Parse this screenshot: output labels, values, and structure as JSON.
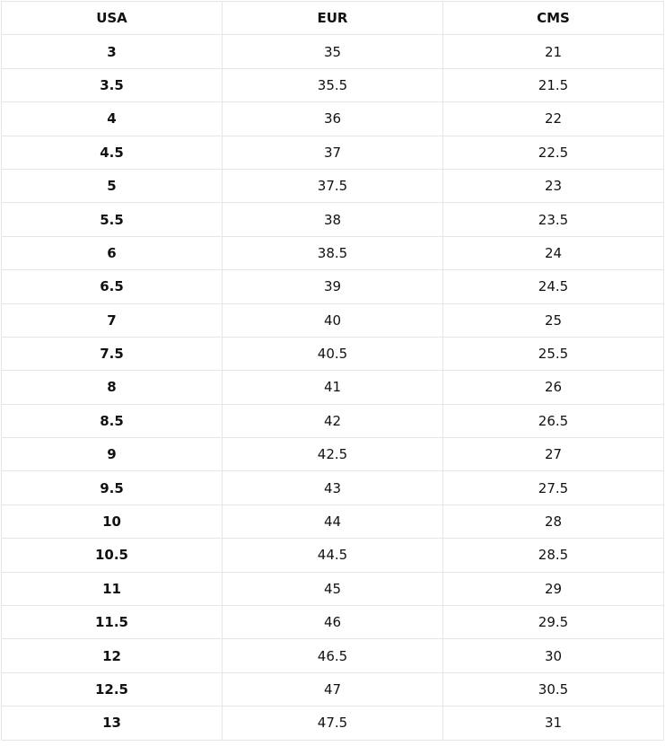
{
  "table": {
    "headers": [
      "USA",
      "EUR",
      "CMS"
    ],
    "rows": [
      [
        "3",
        "35",
        "21"
      ],
      [
        "3.5",
        "35.5",
        "21.5"
      ],
      [
        "4",
        "36",
        "22"
      ],
      [
        "4.5",
        "37",
        "22.5"
      ],
      [
        "5",
        "37.5",
        "23"
      ],
      [
        "5.5",
        "38",
        "23.5"
      ],
      [
        "6",
        "38.5",
        "24"
      ],
      [
        "6.5",
        "39",
        "24.5"
      ],
      [
        "7",
        "40",
        "25"
      ],
      [
        "7.5",
        "40.5",
        "25.5"
      ],
      [
        "8",
        "41",
        "26"
      ],
      [
        "8.5",
        "42",
        "26.5"
      ],
      [
        "9",
        "42.5",
        "27"
      ],
      [
        "9.5",
        "43",
        "27.5"
      ],
      [
        "10",
        "44",
        "28"
      ],
      [
        "10.5",
        "44.5",
        "28.5"
      ],
      [
        "11",
        "45",
        "29"
      ],
      [
        "11.5",
        "46",
        "29.5"
      ],
      [
        "12",
        "46.5",
        "30"
      ],
      [
        "12.5",
        "47",
        "30.5"
      ],
      [
        "13",
        "47.5",
        "31"
      ]
    ]
  }
}
